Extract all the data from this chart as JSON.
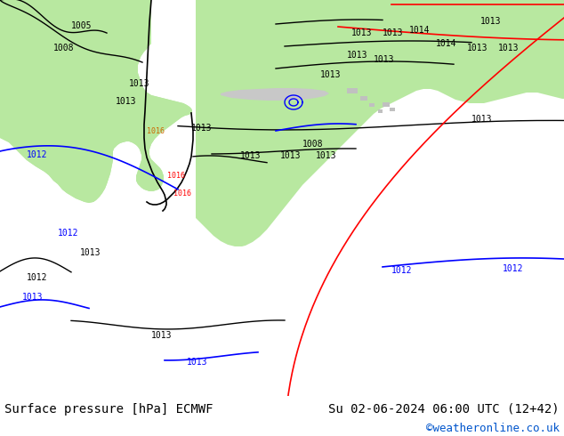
{
  "title_left": "Surface pressure [hPa] ECMWF",
  "title_right": "Su 02-06-2024 06:00 UTC (12+42)",
  "credit": "©weatheronline.co.uk",
  "bg_color": "#ffffff",
  "ocean_color": "#d8d8d8",
  "land_color": "#b8e8a0",
  "bottom_bar_color": "#f0f0f0",
  "title_fontsize": 10,
  "credit_fontsize": 9,
  "credit_color": "#0055cc",
  "figsize": [
    6.34,
    4.9
  ],
  "dpi": 100
}
